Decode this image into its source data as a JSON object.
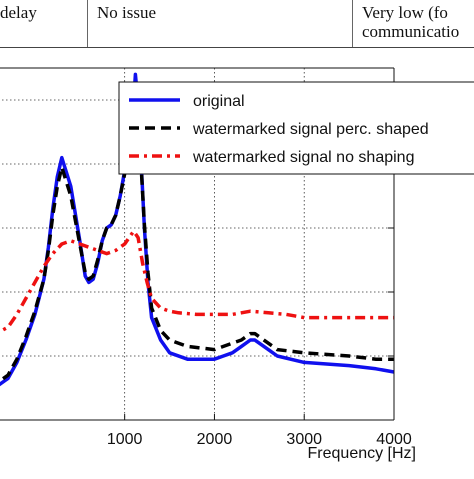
{
  "table": {
    "cells": [
      {
        "lines": [
          "delay"
        ]
      },
      {
        "lines": [
          "No issue"
        ]
      },
      {
        "lines": [
          "Very low (fo",
          "communicatio"
        ]
      }
    ]
  },
  "chart_data": {
    "type": "line",
    "title": "",
    "xlabel": "Frequency [Hz]",
    "ylabel": "",
    "xlim": [
      -500,
      4000
    ],
    "ylim": [
      0,
      11
    ],
    "x_ticks": [
      1000,
      2000,
      3000,
      4000
    ],
    "x_tick_labels": [
      "1000",
      "2000",
      "3000",
      "4000"
    ],
    "grid": true,
    "legend_position": "top-right",
    "series": [
      {
        "name": "original",
        "color": "#1010ee",
        "style": "solid",
        "x": [
          -500,
          -300,
          -200,
          -100,
          0,
          100,
          150,
          200,
          250,
          300,
          400,
          500,
          560,
          600,
          650,
          700,
          750,
          800,
          850,
          900,
          950,
          1000,
          1050,
          1100,
          1120,
          1150,
          1180,
          1220,
          1260,
          1300,
          1400,
          1500,
          1700,
          2000,
          2100,
          2200,
          2300,
          2400,
          2450,
          2500,
          2600,
          2700,
          3000,
          3500,
          3800,
          4000
        ],
        "y": [
          0.9,
          1.3,
          1.8,
          2.5,
          3.3,
          4.4,
          5.4,
          6.6,
          7.6,
          8.2,
          7.3,
          5.6,
          4.5,
          4.3,
          4.4,
          4.9,
          5.6,
          6.0,
          6.1,
          6.4,
          7.0,
          7.8,
          8.5,
          9.9,
          10.8,
          9.9,
          8.3,
          6.0,
          4.3,
          3.2,
          2.5,
          2.1,
          1.9,
          1.9,
          2.0,
          2.1,
          2.3,
          2.5,
          2.5,
          2.4,
          2.2,
          2.0,
          1.8,
          1.7,
          1.6,
          1.5
        ]
      },
      {
        "name": "watermarked signal perc. shaped",
        "color": "#000000",
        "style": "dashed",
        "x": [
          -500,
          -300,
          -200,
          -100,
          0,
          100,
          150,
          200,
          250,
          300,
          400,
          500,
          560,
          600,
          650,
          700,
          750,
          800,
          850,
          900,
          950,
          1000,
          1050,
          1100,
          1120,
          1150,
          1180,
          1220,
          1260,
          1300,
          1400,
          1500,
          1700,
          2000,
          2100,
          2200,
          2300,
          2400,
          2450,
          2500,
          2600,
          2700,
          3000,
          3500,
          3800,
          4000
        ],
        "y": [
          1.0,
          1.4,
          1.9,
          2.6,
          3.4,
          4.4,
          5.3,
          6.4,
          7.3,
          7.9,
          7.0,
          5.5,
          4.6,
          4.4,
          4.5,
          5.0,
          5.6,
          6.0,
          6.1,
          6.4,
          7.0,
          7.7,
          8.4,
          9.6,
          10.1,
          9.5,
          8.1,
          6.1,
          4.6,
          3.5,
          2.8,
          2.5,
          2.3,
          2.2,
          2.3,
          2.4,
          2.5,
          2.7,
          2.7,
          2.6,
          2.4,
          2.2,
          2.1,
          2.0,
          1.9,
          1.9
        ]
      },
      {
        "name": "watermarked signal no shaping",
        "color": "#ee1111",
        "style": "dashdot",
        "x": [
          -500,
          -300,
          -200,
          -100,
          0,
          100,
          200,
          300,
          400,
          500,
          600,
          700,
          800,
          900,
          1000,
          1100,
          1150,
          1200,
          1250,
          1300,
          1400,
          1500,
          1600,
          1800,
          2000,
          2200,
          2400,
          2600,
          2800,
          3000,
          3200,
          3400,
          3600,
          3800,
          4000
        ],
        "y": [
          2.6,
          2.9,
          3.3,
          3.8,
          4.3,
          4.8,
          5.2,
          5.5,
          5.6,
          5.5,
          5.4,
          5.3,
          5.2,
          5.3,
          5.5,
          5.9,
          5.7,
          4.9,
          4.3,
          3.8,
          3.5,
          3.4,
          3.35,
          3.3,
          3.3,
          3.3,
          3.4,
          3.35,
          3.3,
          3.2,
          3.2,
          3.2,
          3.2,
          3.2,
          3.2
        ]
      }
    ]
  }
}
